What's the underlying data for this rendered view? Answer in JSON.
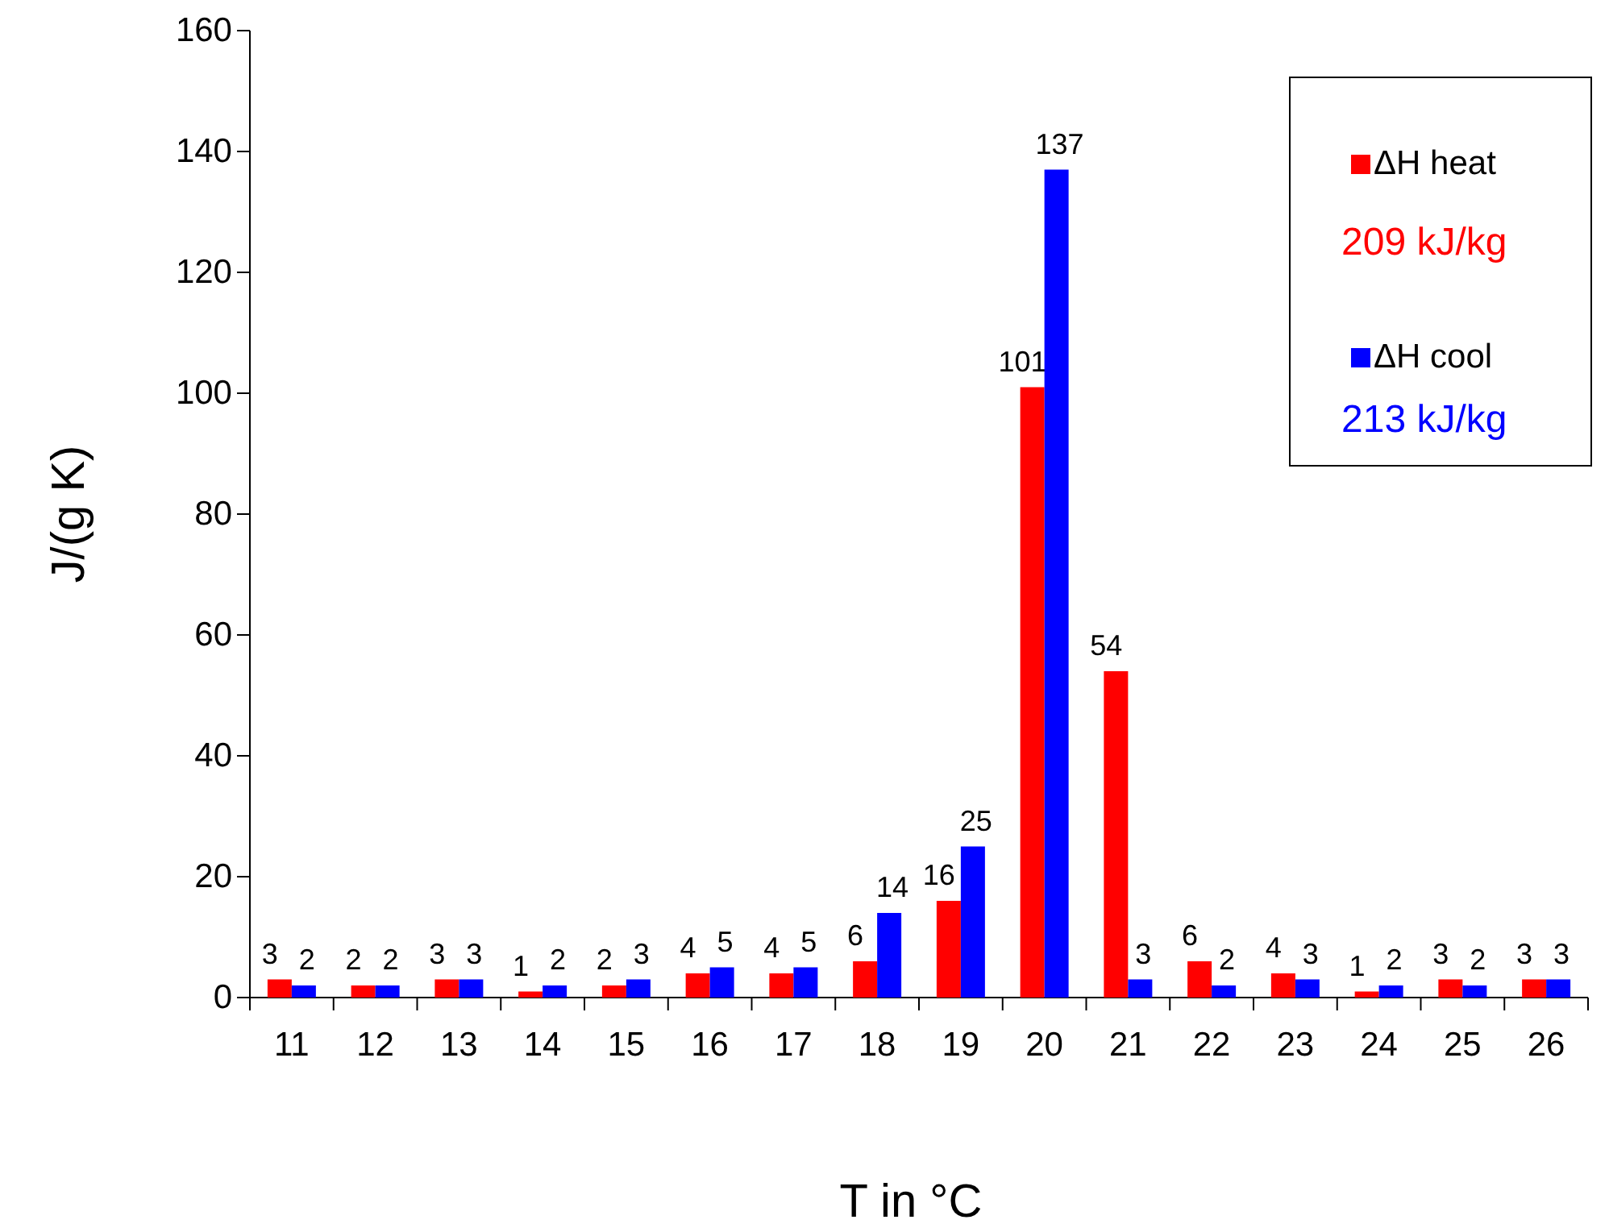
{
  "chart_data": {
    "type": "bar",
    "xlabel": "T in °C",
    "ylabel": "J/(g K)",
    "categories": [
      "11",
      "12",
      "13",
      "14",
      "15",
      "16",
      "17",
      "18",
      "19",
      "20",
      "21",
      "22",
      "23",
      "24",
      "25",
      "26"
    ],
    "series": [
      {
        "name": "ΔH heat",
        "color": "#ff0000",
        "values": [
          3,
          2,
          3,
          1,
          2,
          4,
          4,
          6,
          16,
          101,
          54,
          6,
          4,
          1,
          3,
          3
        ]
      },
      {
        "name": "ΔH cool",
        "color": "#0000ff",
        "values": [
          2,
          2,
          3,
          2,
          3,
          5,
          5,
          14,
          25,
          137,
          3,
          2,
          3,
          2,
          2,
          3
        ]
      }
    ],
    "annotations": [
      "209 kJ/kg",
      "213 kJ/kg"
    ],
    "ylim": [
      0,
      160
    ],
    "yticks": [
      0,
      20,
      40,
      60,
      80,
      100,
      120,
      140,
      160
    ],
    "data_labels": true,
    "legend": "top right",
    "grid": false
  }
}
